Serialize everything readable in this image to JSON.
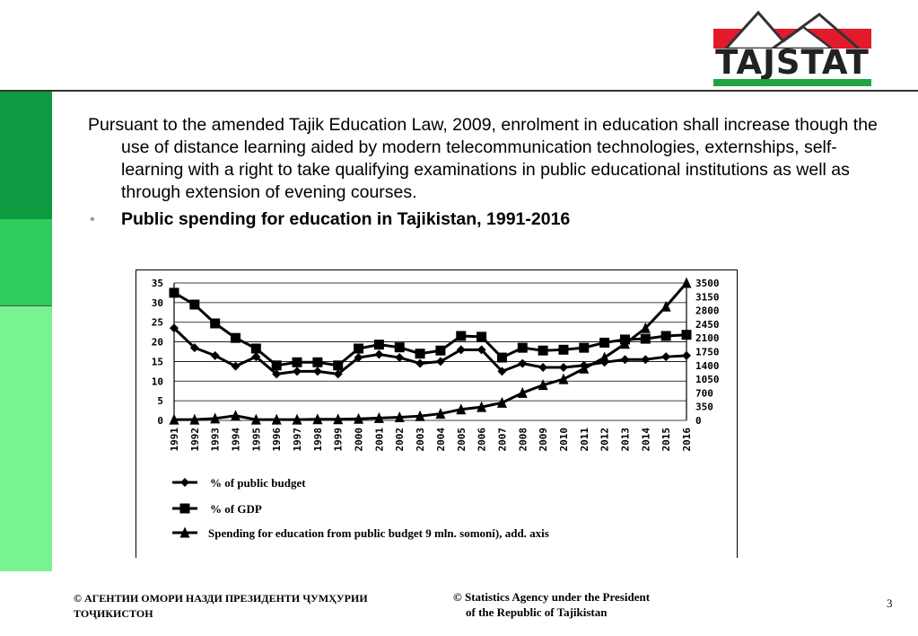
{
  "logo": {
    "text": "TAJSTAT"
  },
  "content": {
    "paragraph": "Pursuant to the amended Tajik Education Law, 2009, enrolment in education shall increase though the use of distance learning aided by modern telecommunication technologies, externships, self-learning with a right to take qualifying examinations in public educational institutions as well as through extension of evening courses.",
    "bullet": "•",
    "subtitle": "Public spending for education in Tajikistan, 1991-2016"
  },
  "chart_data": {
    "type": "line",
    "categories": [
      "1991",
      "1992",
      "1993",
      "1994",
      "1995",
      "1996",
      "1997",
      "1998",
      "1999",
      "2000",
      "2001",
      "2002",
      "2003",
      "2004",
      "2005",
      "2006",
      "2007",
      "2008",
      "2009",
      "2010",
      "2011",
      "2012",
      "2013",
      "2014",
      "2015",
      "2016"
    ],
    "y_left": {
      "ylim": [
        0,
        35
      ],
      "ticks": [
        "0",
        "5",
        "10",
        "15",
        "20",
        "25",
        "30",
        "35"
      ]
    },
    "y_right": {
      "ylim": [
        0,
        3500
      ],
      "ticks": [
        "0",
        "350",
        "700",
        "1050",
        "1400",
        "1750",
        "2100",
        "2450",
        "2800",
        "3150",
        "3500"
      ]
    },
    "grid": "horizontal",
    "legend_position": "bottom",
    "series": [
      {
        "name": "% of public budget",
        "axis": "left",
        "marker": "diamond",
        "values": [
          23.5,
          18.5,
          16.5,
          13.8,
          16.2,
          11.8,
          12.5,
          12.5,
          11.8,
          16.0,
          16.8,
          16.0,
          14.5,
          15.0,
          18.0,
          18.0,
          12.5,
          14.5,
          13.5,
          13.5,
          14.0,
          14.8,
          15.5,
          15.5,
          16.2,
          16.5
        ]
      },
      {
        "name": "% of GDP",
        "axis": "left",
        "marker": "square",
        "values": [
          32.5,
          29.5,
          24.7,
          21.0,
          18.3,
          14.0,
          14.8,
          14.8,
          14.0,
          18.3,
          19.3,
          18.6,
          17.0,
          17.8,
          21.5,
          21.3,
          16.0,
          18.5,
          17.8,
          18.0,
          18.5,
          19.8,
          20.6,
          20.8,
          21.5,
          21.8
        ]
      },
      {
        "name": "Spending for education from public budget 9 mln. somoni), add. axis",
        "axis": "right",
        "marker": "triangle",
        "values": [
          20,
          20,
          50,
          120,
          20,
          20,
          20,
          30,
          30,
          40,
          60,
          80,
          110,
          170,
          280,
          340,
          450,
          700,
          900,
          1050,
          1320,
          1600,
          1950,
          2350,
          2900,
          3500
        ]
      }
    ]
  },
  "footer": {
    "left_line1": "© АГЕНТИИ ОМОРИ НАЗДИ ПРЕЗИДЕНТИ ҶУМҲУРИИ",
    "left_line2": "ТОҶИКИСТОН",
    "mid_line1": "© Statistics Agency under the President",
    "mid_line2": "of the Republic of Tajikistan",
    "page": "3"
  },
  "colors": {
    "band_dark": "#0e9a41",
    "band_mid": "#2fcc5b",
    "band_light": "#79f38f",
    "logo_red": "#e3192c",
    "logo_green": "#22a343"
  }
}
